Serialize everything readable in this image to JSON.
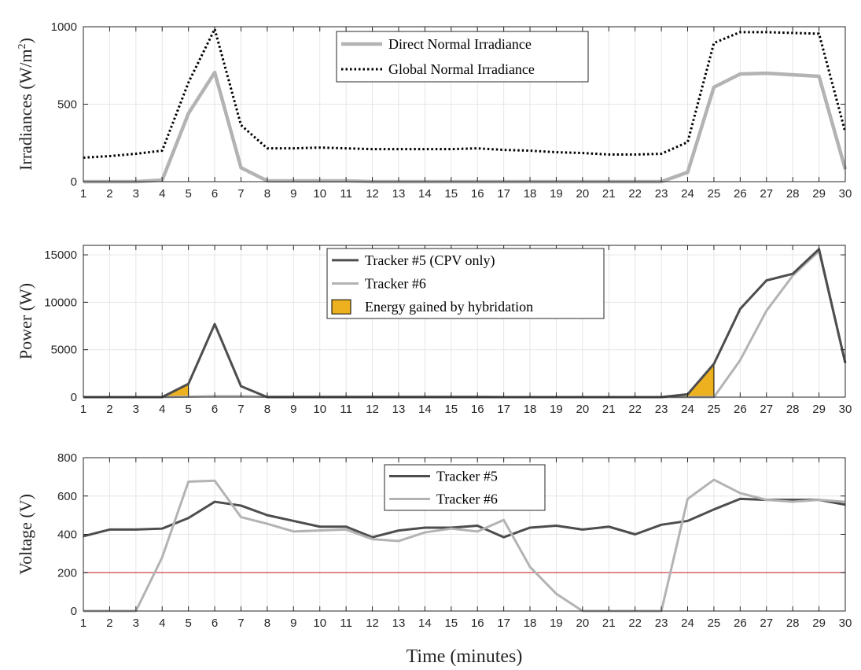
{
  "colors": {
    "dark": "#4d4d4d",
    "light": "#b3b3b3",
    "gni": "#000000",
    "energy": "#edb120",
    "threshold": "#d4434d"
  },
  "chart_data": [
    {
      "type": "line",
      "xlabel": "",
      "ylabel": "Irradiances (W/m²)",
      "ylabel_main": "Irradiances (W/m",
      "ylabel_sup": "2",
      "ylabel_close": ")",
      "xlim": [
        1,
        30
      ],
      "ylim": [
        0,
        1000
      ],
      "yticks": [
        0,
        500,
        1000
      ],
      "grid": true,
      "legend_position": "top-center",
      "x": [
        1,
        2,
        3,
        4,
        5,
        6,
        7,
        8,
        9,
        10,
        11,
        12,
        13,
        14,
        15,
        16,
        17,
        18,
        19,
        20,
        21,
        22,
        23,
        24,
        25,
        26,
        27,
        28,
        29,
        30
      ],
      "series": [
        {
          "name": "Direct Normal Irradiance",
          "values": [
            0,
            0,
            0,
            10,
            440,
            705,
            90,
            5,
            5,
            5,
            5,
            0,
            0,
            0,
            0,
            0,
            0,
            0,
            0,
            0,
            0,
            0,
            0,
            60,
            610,
            695,
            700,
            690,
            680,
            80
          ]
        },
        {
          "name": "Global Normal Irradiance",
          "values": [
            155,
            165,
            180,
            200,
            640,
            985,
            365,
            215,
            215,
            220,
            215,
            210,
            210,
            210,
            210,
            215,
            205,
            200,
            190,
            185,
            175,
            175,
            180,
            255,
            895,
            965,
            965,
            960,
            955,
            320
          ]
        }
      ]
    },
    {
      "type": "line",
      "xlabel": "",
      "ylabel": "Power (W)",
      "xlim": [
        1,
        30
      ],
      "ylim": [
        0,
        16000
      ],
      "yticks": [
        0,
        5000,
        10000,
        15000
      ],
      "grid": true,
      "legend_position": "top-center",
      "x": [
        1,
        2,
        3,
        4,
        5,
        6,
        7,
        8,
        9,
        10,
        11,
        12,
        13,
        14,
        15,
        16,
        17,
        18,
        19,
        20,
        21,
        22,
        23,
        24,
        25,
        26,
        27,
        28,
        29,
        30
      ],
      "series": [
        {
          "name": "Tracker #5 (CPV only)",
          "values": [
            0,
            0,
            0,
            0,
            1400,
            7700,
            1150,
            0,
            0,
            0,
            0,
            0,
            0,
            0,
            0,
            0,
            0,
            0,
            0,
            0,
            0,
            0,
            0,
            300,
            3500,
            9300,
            12300,
            13000,
            15600,
            3600
          ]
        },
        {
          "name": "Tracker #6",
          "values": [
            0,
            0,
            0,
            0,
            50,
            100,
            100,
            50,
            50,
            50,
            50,
            50,
            50,
            50,
            50,
            50,
            0,
            0,
            0,
            0,
            0,
            0,
            0,
            0,
            0,
            3900,
            9100,
            12800,
            15400,
            3600
          ]
        }
      ],
      "energy_gained": {
        "name": "Energy gained by hybridation",
        "regions": [
          {
            "x": [
              4,
              5
            ],
            "y": [
              0,
              1400
            ]
          },
          {
            "x": [
              23,
              24,
              25
            ],
            "y": [
              0,
              300,
              3500
            ]
          }
        ]
      }
    },
    {
      "type": "line",
      "xlabel": "Time (minutes)",
      "ylabel": "Voltage (V)",
      "xlim": [
        1,
        30
      ],
      "ylim": [
        0,
        800
      ],
      "yticks": [
        0,
        200,
        400,
        600,
        800
      ],
      "grid": true,
      "legend_position": "top-center",
      "threshold": 200,
      "x": [
        1,
        2,
        3,
        4,
        5,
        6,
        7,
        8,
        9,
        10,
        11,
        12,
        13,
        14,
        15,
        16,
        17,
        18,
        19,
        20,
        21,
        22,
        23,
        24,
        25,
        26,
        27,
        28,
        29,
        30
      ],
      "series": [
        {
          "name": "Tracker #5",
          "values": [
            390,
            425,
            425,
            430,
            485,
            570,
            550,
            500,
            470,
            440,
            440,
            385,
            420,
            435,
            435,
            445,
            385,
            435,
            445,
            425,
            440,
            400,
            450,
            470,
            530,
            585,
            580,
            580,
            580,
            555
          ]
        },
        {
          "name": "Tracker #6",
          "values": [
            0,
            0,
            0,
            280,
            675,
            680,
            490,
            455,
            415,
            420,
            425,
            375,
            365,
            410,
            430,
            415,
            475,
            230,
            90,
            0,
            0,
            0,
            0,
            585,
            685,
            615,
            580,
            570,
            580,
            570
          ]
        }
      ]
    }
  ]
}
